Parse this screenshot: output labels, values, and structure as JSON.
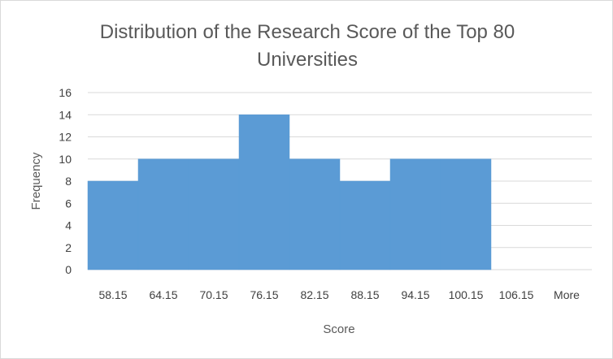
{
  "chart_data": {
    "type": "bar",
    "title_lines": [
      "Distribution of the Research Score of the Top 80",
      "Universities"
    ],
    "xlabel": "Score",
    "ylabel": "Frequency",
    "categories": [
      "58.15",
      "64.15",
      "70.15",
      "76.15",
      "82.15",
      "88.15",
      "94.15",
      "100.15",
      "106.15",
      "More"
    ],
    "values": [
      8,
      10,
      10,
      14,
      10,
      8,
      10,
      10,
      0,
      0
    ],
    "ylim": [
      0,
      16
    ],
    "yticks": [
      "0",
      "2",
      "4",
      "6",
      "8",
      "10",
      "12",
      "14",
      "16"
    ],
    "grid": true,
    "legend": "none",
    "bar_color": "#5b9bd5",
    "gridline_color": "#d9d9d9"
  }
}
